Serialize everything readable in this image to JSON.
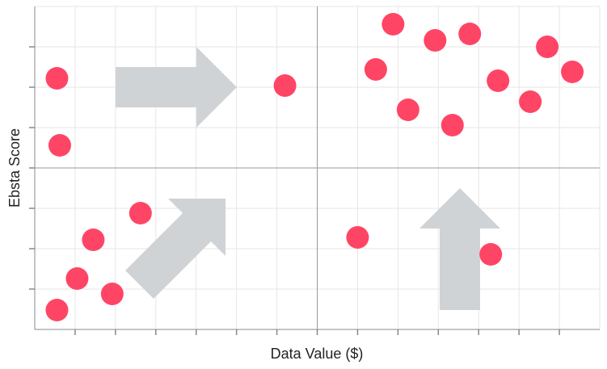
{
  "chart_data": {
    "type": "scatter",
    "xlabel": "Data Value ($)",
    "ylabel": "Ebsta Score",
    "xlim": [
      0,
      14
    ],
    "ylim": [
      0,
      8
    ],
    "grid": true,
    "tick_labels_shown": false,
    "quadrant_lines": {
      "x": 7,
      "y": 4
    },
    "points": [
      {
        "x": 0.55,
        "y": 6.22
      },
      {
        "x": 0.62,
        "y": 4.56
      },
      {
        "x": 1.05,
        "y": 1.26
      },
      {
        "x": 1.45,
        "y": 2.22
      },
      {
        "x": 1.92,
        "y": 0.88
      },
      {
        "x": 2.62,
        "y": 2.88
      },
      {
        "x": 0.55,
        "y": 0.48
      },
      {
        "x": 6.2,
        "y": 6.04
      },
      {
        "x": 8.0,
        "y": 2.28
      },
      {
        "x": 8.45,
        "y": 6.44
      },
      {
        "x": 8.88,
        "y": 7.56
      },
      {
        "x": 9.25,
        "y": 5.44
      },
      {
        "x": 9.92,
        "y": 7.16
      },
      {
        "x": 10.35,
        "y": 5.06
      },
      {
        "x": 10.78,
        "y": 7.32
      },
      {
        "x": 11.3,
        "y": 1.86
      },
      {
        "x": 11.48,
        "y": 6.16
      },
      {
        "x": 12.28,
        "y": 5.64
      },
      {
        "x": 12.7,
        "y": 7.0
      },
      {
        "x": 13.32,
        "y": 6.38
      }
    ],
    "colors": {
      "point": "#ff4565",
      "arrow": "#d0d3d5",
      "grid": "#e6e6e6",
      "quadrant_line": "#999999",
      "axis": "#888888",
      "text": "#222222"
    }
  }
}
